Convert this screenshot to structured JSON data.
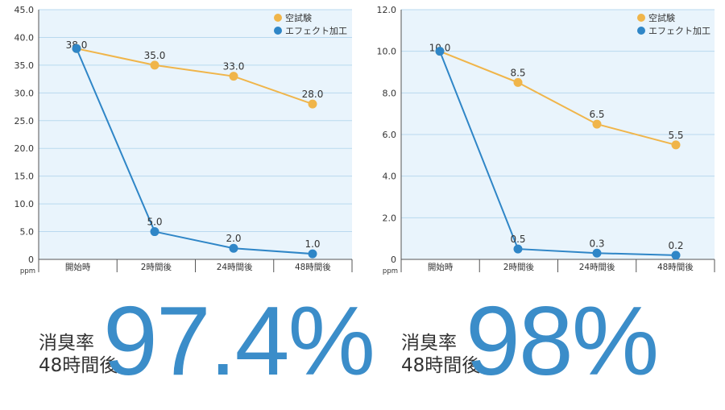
{
  "colors": {
    "plot_bg": "#e9f4fc",
    "grid": "#b9d9ef",
    "axis": "#555555",
    "text": "#333333",
    "blank_test": "#f0b54a",
    "effect": "#2f86c7",
    "big_text": "#3b8dc9"
  },
  "chart_data": [
    {
      "type": "line",
      "unit_label": "ppm",
      "categories": [
        "開始時",
        "2時間後",
        "24時間後",
        "48時間後"
      ],
      "y_ticks": [
        "0",
        "5.0",
        "10.0",
        "15.0",
        "20.0",
        "25.0",
        "30.0",
        "35.0",
        "40.0",
        "45.0"
      ],
      "ylim": [
        0,
        45
      ],
      "grid": true,
      "legend_position": "top-right",
      "series": [
        {
          "name": "空試験",
          "values": [
            38.0,
            35.0,
            33.0,
            28.0
          ],
          "labels": [
            "38.0",
            "35.0",
            "33.0",
            "28.0"
          ]
        },
        {
          "name": "エフェクト加工",
          "values": [
            38.0,
            5.0,
            2.0,
            1.0
          ],
          "labels": [
            "",
            "5.0",
            "2.0",
            "1.0"
          ]
        }
      ]
    },
    {
      "type": "line",
      "unit_label": "ppm",
      "categories": [
        "開始時",
        "2時間後",
        "24時間後",
        "48時間後"
      ],
      "y_ticks": [
        "0",
        "2.0",
        "4.0",
        "6.0",
        "8.0",
        "10.0",
        "12.0"
      ],
      "ylim": [
        0,
        12
      ],
      "grid": true,
      "legend_position": "top-right",
      "series": [
        {
          "name": "空試験",
          "values": [
            10.0,
            8.5,
            6.5,
            5.5
          ],
          "labels": [
            "10.0",
            "8.5",
            "6.5",
            "5.5"
          ]
        },
        {
          "name": "エフェクト加工",
          "values": [
            10.0,
            0.5,
            0.3,
            0.2
          ],
          "labels": [
            "",
            "0.5",
            "0.3",
            "0.2"
          ]
        }
      ]
    }
  ],
  "summaries": [
    {
      "caption_line1": "消臭率",
      "caption_line2": "48時間後",
      "percent": "97.4%"
    },
    {
      "caption_line1": "消臭率",
      "caption_line2": "48時間後",
      "percent": "98%"
    }
  ]
}
